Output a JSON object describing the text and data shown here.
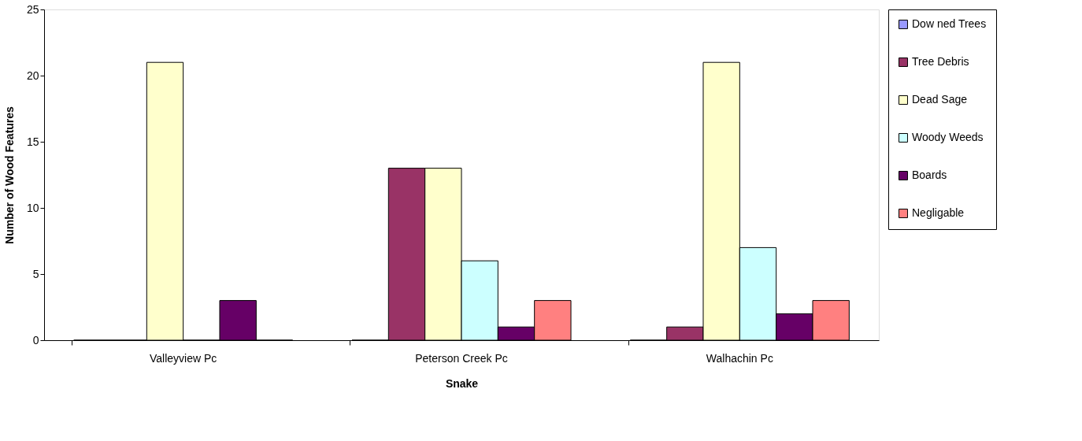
{
  "chart_data": {
    "type": "bar",
    "xlabel": "Snake",
    "ylabel": "Number of Wood Features",
    "categories": [
      "Valleyview  Pc",
      "Peterson Creek Pc",
      "Walhachin Pc"
    ],
    "series": [
      {
        "name": "Dow ned Trees",
        "color": "#9999ff",
        "values": [
          0,
          0,
          0
        ]
      },
      {
        "name": "Tree Debris",
        "color": "#993366",
        "values": [
          0,
          13,
          1
        ]
      },
      {
        "name": "Dead Sage",
        "color": "#ffffcc",
        "values": [
          21,
          13,
          21
        ]
      },
      {
        "name": "Woody Weeds",
        "color": "#ccffff",
        "values": [
          0,
          6,
          7
        ]
      },
      {
        "name": "Boards",
        "color": "#660066",
        "values": [
          3,
          1,
          2
        ]
      },
      {
        "name": "Negligable",
        "color": "#ff8080",
        "values": [
          0,
          3,
          3
        ]
      }
    ],
    "ylim": [
      0,
      25
    ],
    "yticks": [
      0,
      5,
      10,
      15,
      20,
      25
    ],
    "grid": false,
    "legend": "right"
  }
}
